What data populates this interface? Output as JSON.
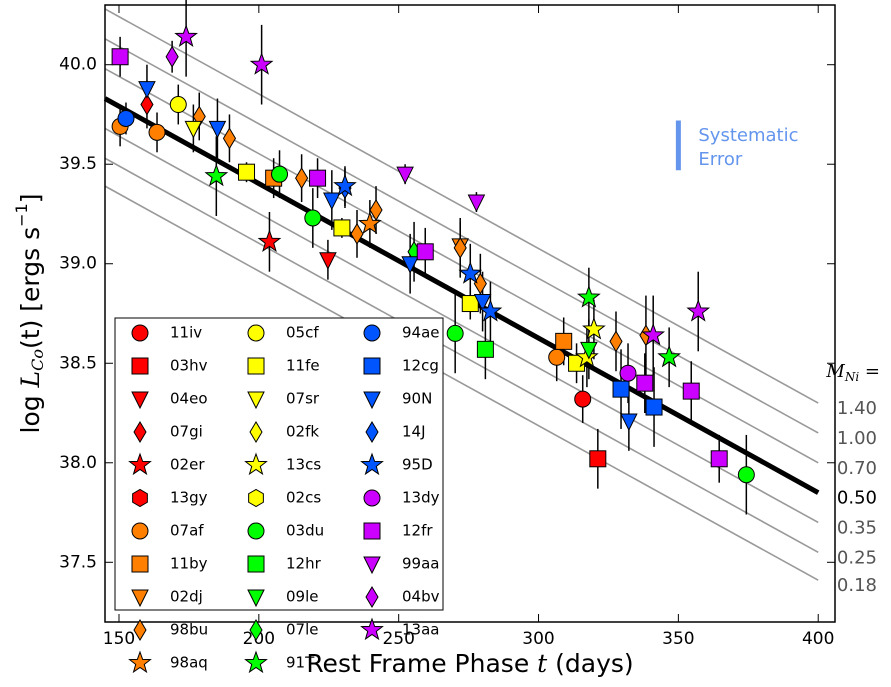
{
  "chart_data": {
    "type": "scatter",
    "xlim": [
      145,
      406
    ],
    "ylim": [
      37.2,
      40.3
    ],
    "xticks": [
      150,
      200,
      250,
      300,
      350,
      400
    ],
    "yticks": [
      37.5,
      {
        "value": 38,
        "label": "38.0"
      },
      38.5,
      {
        "value": 39,
        "label": "39.0"
      },
      39.5,
      {
        "value": 40,
        "label": "40.0"
      }
    ],
    "x_label": [
      "Rest Frame Phase ",
      "t",
      " (days)"
    ],
    "y_label": [
      "log ",
      "L",
      "Co",
      "(t)  [ergs s",
      "−1",
      "]"
    ],
    "legend": "lower left",
    "model_lines": {
      "label": [
        "M",
        "Ni",
        " ="
      ],
      "lines": [
        {
          "label": "1.40",
          "x": [
            145,
            400
          ],
          "values": [
            40.28,
            38.3
          ],
          "bold": false
        },
        {
          "label": "1.00",
          "x": [
            145,
            400
          ],
          "values": [
            40.13,
            38.15
          ],
          "bold": false
        },
        {
          "label": "0.70",
          "x": [
            145,
            400
          ],
          "values": [
            39.98,
            38.0
          ],
          "bold": false
        },
        {
          "label": "0.50",
          "x": [
            145,
            400
          ],
          "values": [
            39.83,
            37.85
          ],
          "bold": true
        },
        {
          "label": "0.35",
          "x": [
            145,
            400
          ],
          "values": [
            39.68,
            37.7
          ],
          "bold": false
        },
        {
          "label": "0.25",
          "x": [
            145,
            400
          ],
          "values": [
            39.53,
            37.55
          ],
          "bold": false
        },
        {
          "label": "0.18",
          "x": [
            145,
            400
          ],
          "values": [
            39.39,
            37.41
          ],
          "bold": false
        }
      ]
    },
    "systematic_error": {
      "text": [
        "Systematic",
        "Error"
      ],
      "color": "#6495ed",
      "x": 350,
      "values": [
        39.47,
        39.72
      ]
    },
    "series": [
      {
        "name": "11iv",
        "color": "#ff0000",
        "marker": "circle",
        "x": [
          315.8
        ],
        "values": [
          38.32
        ],
        "errors": [
          0.12
        ]
      },
      {
        "name": "03hv",
        "color": "#ff0000",
        "marker": "square",
        "x": [
          321.2
        ],
        "values": [
          38.02
        ],
        "errors": [
          0.15
        ]
      },
      {
        "name": "04eo",
        "color": "#ff0000",
        "marker": "tri",
        "x": [
          224.7
        ],
        "values": [
          39.02
        ],
        "errors": [
          0.1
        ]
      },
      {
        "name": "07gi",
        "color": "#ff0000",
        "marker": "diamond",
        "x": [
          160
        ],
        "values": [
          39.8
        ],
        "errors": [
          0.12
        ]
      },
      {
        "name": "02er",
        "color": "#ff0000",
        "marker": "star",
        "x": [
          203.8
        ],
        "values": [
          39.11
        ],
        "errors": [
          0.15
        ]
      },
      {
        "name": "13gy",
        "color": "#ff0000",
        "marker": "hexagon",
        "x": [],
        "values": [],
        "errors": []
      },
      {
        "name": "07af",
        "color": "#ff8000",
        "marker": "circle",
        "x": [
          150.4,
          163.6,
          306.5
        ],
        "values": [
          39.69,
          39.66,
          38.53
        ],
        "errors": [
          0.1,
          0.1,
          0.12
        ]
      },
      {
        "name": "11by",
        "color": "#ff8000",
        "marker": "square",
        "x": [
          205.3,
          309
        ],
        "values": [
          39.43,
          38.61
        ],
        "errors": [
          0.1,
          0.12
        ]
      },
      {
        "name": "02dj",
        "color": "#ff8000",
        "marker": "tri",
        "x": [
          272
        ],
        "values": [
          39.09
        ],
        "errors": [
          0.12
        ]
      },
      {
        "name": "98bu",
        "color": "#ff8000",
        "marker": "diamond",
        "x": [
          178.7,
          189.5,
          215.3,
          241.9,
          235.1,
          272,
          279.2,
          327.7,
          338.4
        ],
        "values": [
          39.74,
          39.63,
          39.43,
          39.27,
          39.15,
          39.08,
          38.9,
          38.61,
          38.64
        ],
        "errors": [
          0.12,
          0.12,
          0.12,
          0.12,
          0.12,
          0.15,
          0.15,
          0.15,
          0.2
        ]
      },
      {
        "name": "98aq",
        "color": "#ff8000",
        "marker": "star",
        "x": [
          239.7
        ],
        "values": [
          39.2
        ],
        "errors": [
          0.12
        ]
      },
      {
        "name": "05cf",
        "color": "#ffff00",
        "marker": "circle",
        "x": [
          171.2
        ],
        "values": [
          39.8
        ],
        "errors": [
          0.1
        ]
      },
      {
        "name": "11fe",
        "color": "#ffff00",
        "marker": "square",
        "x": [
          195.6,
          229.7,
          275.6,
          313.6
        ],
        "values": [
          39.46,
          39.18,
          38.8,
          38.5
        ],
        "errors": [
          0.05,
          0.05,
          0.08,
          0.1
        ]
      },
      {
        "name": "07sr",
        "color": "#ffff00",
        "marker": "tri",
        "x": [
          176.6
        ],
        "values": [
          39.68
        ],
        "errors": [
          0.12
        ]
      },
      {
        "name": "02fk",
        "color": "#ffff00",
        "marker": "diamond",
        "x": [],
        "values": [],
        "errors": []
      },
      {
        "name": "13cs",
        "color": "#ffff00",
        "marker": "star",
        "x": [
          319.8,
          317.3
        ],
        "values": [
          38.67,
          38.53
        ],
        "errors": [
          0.15,
          0.15
        ]
      },
      {
        "name": "02cs",
        "color": "#ffff00",
        "marker": "hexagon",
        "x": [],
        "values": [],
        "errors": []
      },
      {
        "name": "03du",
        "color": "#00ff00",
        "marker": "circle",
        "x": [
          207.4,
          219.3,
          270.2,
          374.3
        ],
        "values": [
          39.45,
          39.23,
          38.65,
          37.94
        ],
        "errors": [
          0.12,
          0.15,
          0.2,
          0.2
        ]
      },
      {
        "name": "12hr",
        "color": "#00ff00",
        "marker": "square",
        "x": [
          281
        ],
        "values": [
          38.57
        ],
        "errors": [
          0.15
        ]
      },
      {
        "name": "09le",
        "color": "#00ff00",
        "marker": "tri",
        "x": [
          318
        ],
        "values": [
          38.57
        ],
        "errors": [
          0.15
        ]
      },
      {
        "name": "07le",
        "color": "#00ff00",
        "marker": "diamond",
        "x": [
          255.5
        ],
        "values": [
          39.06
        ],
        "errors": [
          0.15
        ]
      },
      {
        "name": "91T",
        "color": "#00ff00",
        "marker": "star",
        "x": [
          184.8,
          318,
          346.7
        ],
        "values": [
          39.44,
          38.83,
          38.53
        ],
        "errors": [
          0.2,
          0.15,
          0.15
        ]
      },
      {
        "name": "94ae",
        "color": "#0055ff",
        "marker": "circle",
        "x": [
          152.5
        ],
        "values": [
          39.73
        ],
        "errors": [
          0.08
        ]
      },
      {
        "name": "12cg",
        "color": "#0055ff",
        "marker": "square",
        "x": [
          329.5,
          341.3
        ],
        "values": [
          38.37,
          38.28
        ],
        "errors": [
          0.2,
          0.2
        ]
      },
      {
        "name": "90N",
        "color": "#0055ff",
        "marker": "tri",
        "x": [
          160,
          185.2,
          226.1,
          254.1,
          280,
          332.3
        ],
        "values": [
          39.88,
          39.68,
          39.32,
          39.0,
          38.81,
          38.21
        ],
        "errors": [
          0.12,
          0.15,
          0.15,
          0.15,
          0.15,
          0.15
        ]
      },
      {
        "name": "14J",
        "color": "#0055ff",
        "marker": "diamond",
        "x": [
          230.8
        ],
        "values": [
          39.38
        ],
        "errors": [
          0.1
        ]
      },
      {
        "name": "95D",
        "color": "#0055ff",
        "marker": "star",
        "x": [
          230.8,
          275.6,
          282.8
        ],
        "values": [
          39.39,
          38.95,
          38.76
        ],
        "errors": [
          0.1,
          0.15,
          0.15
        ]
      },
      {
        "name": "13dy",
        "color": "#cc00ff",
        "marker": "circle",
        "x": [
          332
        ],
        "values": [
          38.45
        ],
        "errors": [
          0.15
        ]
      },
      {
        "name": "12fr",
        "color": "#cc00ff",
        "marker": "square",
        "x": [
          150.4,
          221,
          259.5,
          338,
          354.6,
          364.6
        ],
        "values": [
          40.04,
          39.43,
          39.06,
          38.4,
          38.36,
          38.02
        ],
        "errors": [
          0.1,
          0.1,
          0.12,
          0.15,
          0.15,
          0.12
        ]
      },
      {
        "name": "99aa",
        "color": "#cc00ff",
        "marker": "tri",
        "x": [
          252.3,
          277.8
        ],
        "values": [
          39.45,
          39.31
        ],
        "errors": [
          0.05,
          0.05
        ]
      },
      {
        "name": "04bv",
        "color": "#cc00ff",
        "marker": "diamond",
        "x": [
          169
        ],
        "values": [
          40.04
        ],
        "errors": [
          0.08
        ]
      },
      {
        "name": "13aa",
        "color": "#cc00ff",
        "marker": "star",
        "x": [
          174,
          201,
          341,
          357.1
        ],
        "values": [
          40.14,
          40.0,
          38.64,
          38.76
        ],
        "errors": [
          0.2,
          0.2,
          0.2,
          0.2
        ]
      }
    ]
  }
}
